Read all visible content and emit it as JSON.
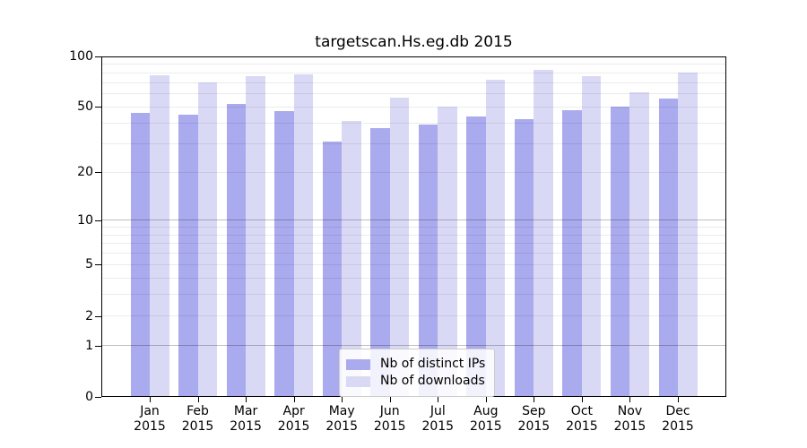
{
  "title": "targetscan.Hs.eg.db 2015",
  "chart_data": {
    "type": "bar",
    "title": "targetscan.Hs.eg.db 2015",
    "categories": [
      "Jan",
      "Feb",
      "Mar",
      "Apr",
      "May",
      "Jun",
      "Jul",
      "Aug",
      "Sep",
      "Oct",
      "Nov",
      "Dec"
    ],
    "category_year": "2015",
    "series": [
      {
        "name": "Nb of distinct IPs",
        "color": "#aaaaee",
        "values": [
          46,
          45,
          52,
          47,
          31,
          37,
          39,
          44,
          42,
          48,
          50,
          56
        ]
      },
      {
        "name": "Nb of downloads",
        "color": "#d9d9f6",
        "values": [
          77,
          70,
          76,
          78,
          41,
          57,
          50,
          73,
          83,
          76,
          61,
          80
        ]
      }
    ],
    "y_axis": {
      "scale": "log1p",
      "ticks": [
        0,
        1,
        2,
        5,
        10,
        20,
        50,
        100
      ],
      "major_gridlines": [
        1,
        10
      ],
      "minor_gridlines": [
        2,
        3,
        4,
        5,
        6,
        7,
        8,
        9,
        20,
        30,
        40,
        50,
        60,
        70,
        80,
        90
      ],
      "ylim": [
        0,
        100
      ]
    },
    "grid": true,
    "legend": {
      "position": "lower center"
    },
    "colors": {
      "frame": "#000000",
      "minor_grid": "rgba(0,0,0,0.08)",
      "major_grid": "rgba(0,0,0,0.25)"
    }
  }
}
